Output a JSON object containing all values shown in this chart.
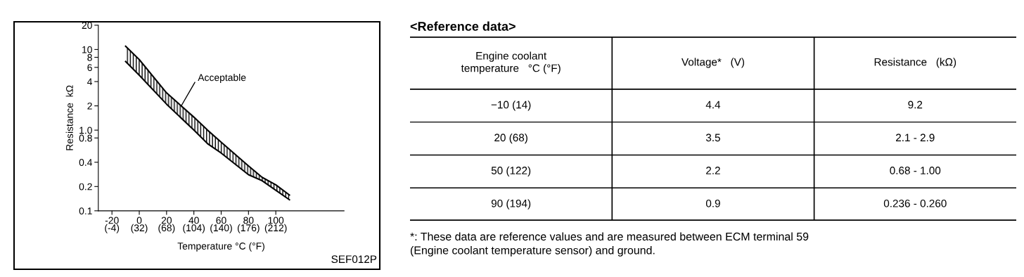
{
  "chart_data": [
    {
      "type": "area",
      "xlabel": "Temperature °C (°F)",
      "ylabel": "Resistance  kΩ",
      "log": "y",
      "xlim": [
        -30,
        150
      ],
      "ylim": [
        0.1,
        20
      ],
      "xticks": [
        -20,
        0,
        20,
        40,
        60,
        80,
        100
      ],
      "x2lim": [
        -22,
        302
      ],
      "x2ticks": [
        {
          "value": -4,
          "label": "(-4)"
        },
        {
          "value": 32,
          "label": "(32)"
        },
        {
          "value": 68,
          "label": "(68)"
        },
        {
          "value": 104,
          "label": "(104)"
        },
        {
          "value": 140,
          "label": "(140)"
        },
        {
          "value": 176,
          "label": "(176)"
        },
        {
          "value": 212,
          "label": "(212)"
        }
      ],
      "yticks": [
        0.1,
        0.2,
        0.4,
        0.8,
        {
          "value": 1,
          "label": "1.0"
        },
        2,
        4,
        6,
        8,
        10,
        20
      ],
      "series": [
        {
          "type": "line",
          "color": "#000000",
          "x": [
            -10,
            0,
            20,
            40,
            50,
            60,
            80,
            90,
            100,
            110
          ],
          "values": [
            11,
            7.5,
            2.9,
            1.45,
            1.0,
            0.71,
            0.36,
            0.26,
            0.21,
            0.157
          ],
          "upper": [
            11,
            7.5,
            2.9,
            1.45,
            1.0,
            0.71,
            0.36,
            0.26,
            0.21,
            0.157
          ],
          "lower": [
            7.1,
            4.8,
            2.1,
            1.0,
            0.68,
            0.52,
            0.28,
            0.236,
            0.18,
            0.137
          ]
        },
        {
          "type": "line",
          "color": "#000000",
          "x": [
            -10,
            0,
            20,
            40,
            50,
            60,
            80,
            90,
            100,
            110
          ],
          "values": [
            7.1,
            4.8,
            2.1,
            1.0,
            0.68,
            0.52,
            0.28,
            0.236,
            0.18,
            0.137
          ]
        }
      ],
      "annotations": [
        {
          "text": "Acceptable",
          "x": 30,
          "y": 1.9
        },
        "SEF012P"
      ]
    },
    {
      "type": "other",
      "title": "<Reference data>",
      "categories": [
        "Engine coolant\ntemperature   °C (°F)",
        "Voltage*   (V)",
        "Resistance   (kΩ)"
      ],
      "cell_labels": [
        [
          "−10 (14)",
          "4.4",
          "9.2"
        ],
        [
          "20 (68)",
          "3.5",
          "2.1 - 2.9"
        ],
        [
          "50 (122)",
          "2.2",
          "0.68 - 1.00"
        ],
        [
          "90 (194)",
          "0.9",
          "0.236 - 0.260"
        ]
      ],
      "annotations": [
        "*: These data are reference values and are measured between ECM terminal 59\n(Engine coolant temperature sensor) and ground."
      ]
    }
  ]
}
